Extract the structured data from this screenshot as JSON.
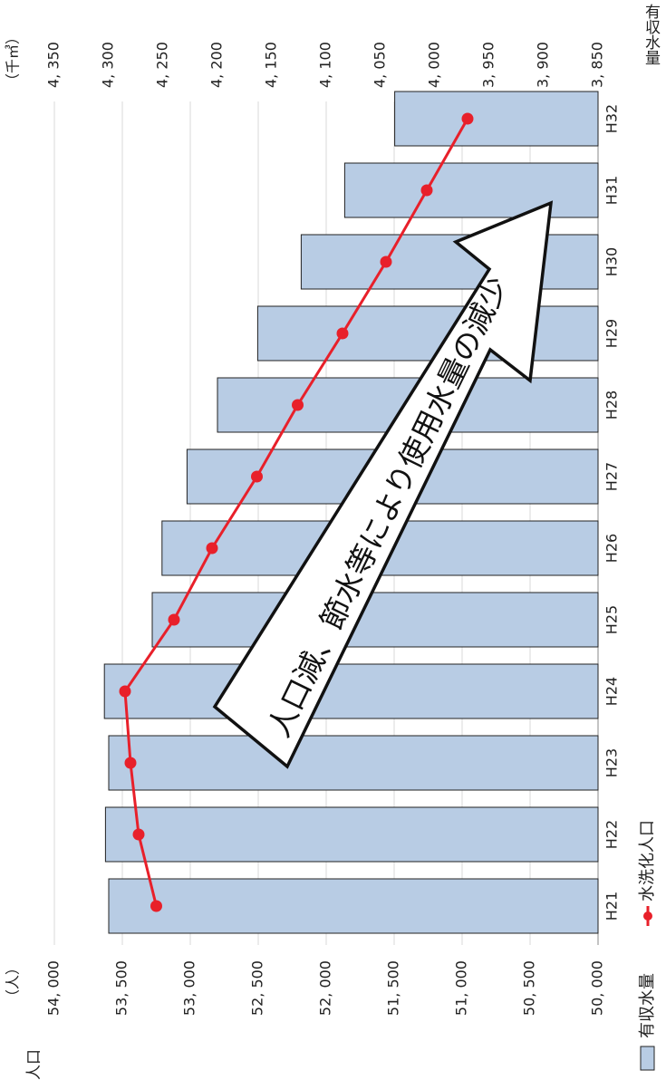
{
  "chart_data": {
    "type": "bar",
    "orientation": "rotated-90",
    "categories": [
      "H21",
      "H22",
      "H23",
      "H24",
      "H25",
      "H26",
      "H27",
      "H28",
      "H29",
      "H30",
      "H31",
      "H32"
    ],
    "series": [
      {
        "name": "有収水量",
        "type": "bar",
        "axis": "secondary",
        "values": [
          4300,
          4303,
          4300,
          4304,
          4260,
          4251,
          4228,
          4200,
          4163,
          4123,
          4083,
          4037
        ]
      },
      {
        "name": "水洗化人口",
        "type": "line",
        "axis": "primary",
        "values": [
          53250,
          53380,
          53440,
          53480,
          53120,
          52840,
          52510,
          52210,
          51880,
          51560,
          51260,
          50960
        ]
      }
    ],
    "primary_axis": {
      "title": "人口",
      "unit": "（人）",
      "range": [
        50000,
        54000
      ],
      "ticks": [
        "50, 000",
        "50, 500",
        "51, 000",
        "51, 500",
        "52, 000",
        "52, 500",
        "53, 000",
        "53, 500",
        "54, 000"
      ]
    },
    "secondary_axis": {
      "title": "有収水量",
      "unit": "（千㎥）",
      "range": [
        3850,
        4350
      ],
      "ticks": [
        "3, 850",
        "3, 900",
        "3, 950",
        "4, 000",
        "4, 050",
        "4, 100",
        "4, 150",
        "4, 200",
        "4, 250",
        "4, 300",
        "4, 350"
      ]
    },
    "annotation": "人口減、節水等により使用水量の減少",
    "legend": {
      "position": "bottom",
      "items": [
        "有収水量",
        "水洗化人口"
      ]
    },
    "grid": true
  },
  "colors": {
    "bar_fill": "#b8cce4",
    "bar_stroke": "#222222",
    "line": "#e8202a",
    "grid": "#d9d9d9"
  }
}
